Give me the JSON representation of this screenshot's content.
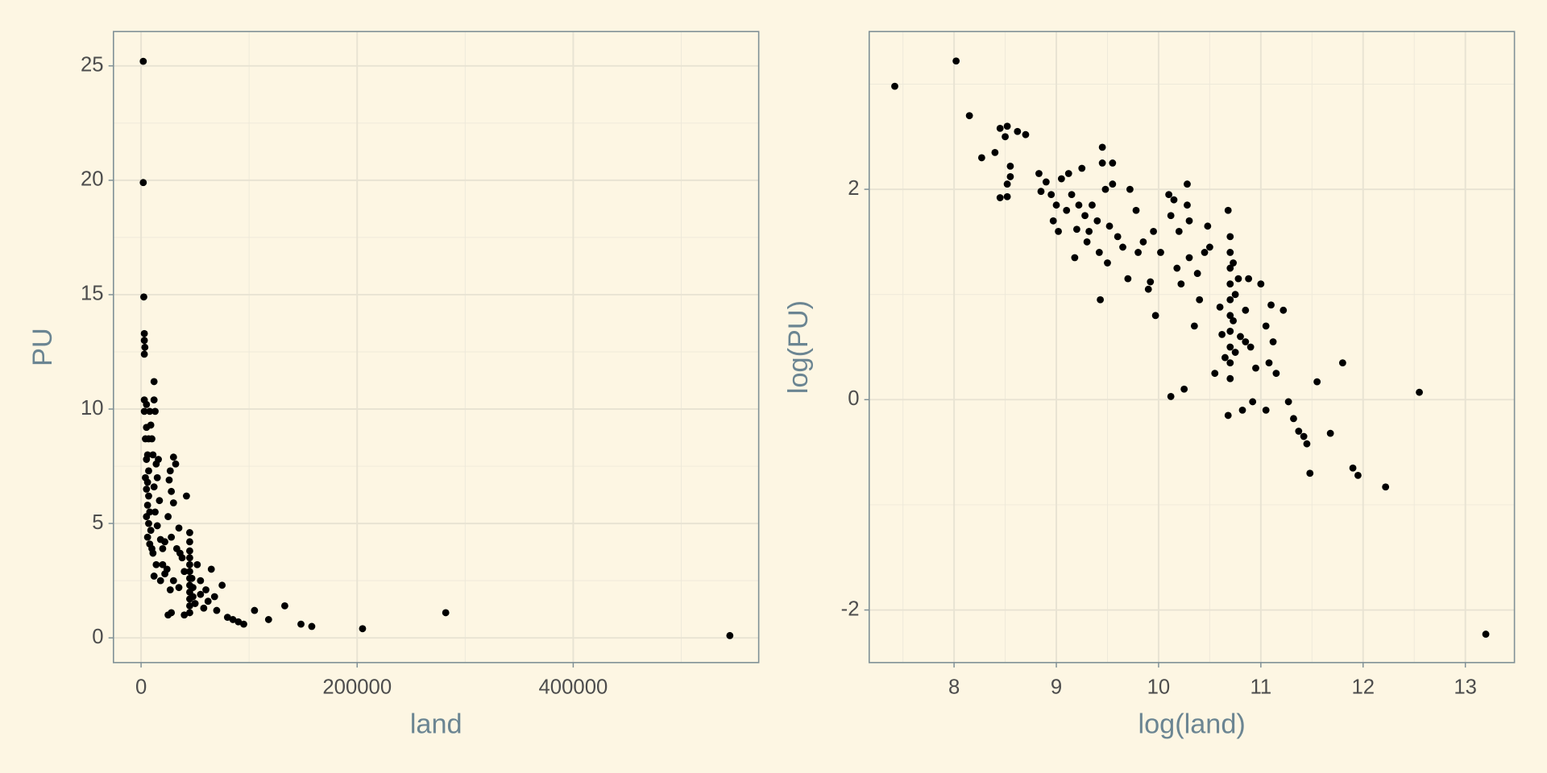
{
  "chart_data": [
    {
      "type": "scatter",
      "xlabel": "land",
      "ylabel": "PU",
      "xlim": [
        -25570,
        571700
      ],
      "ylim": [
        -1.08,
        26.5
      ],
      "xticks": [
        0,
        200000,
        400000
      ],
      "yticks": [
        0,
        5,
        10,
        15,
        20,
        25
      ],
      "grid": true,
      "minor_grid": true,
      "color": "#000000",
      "x": [
        2000,
        2000,
        2500,
        3000,
        3000,
        3500,
        3000,
        3000,
        5000,
        3000,
        8000,
        9000,
        5000,
        7000,
        4000,
        10000,
        6000,
        5000,
        7000,
        4000,
        6000,
        5000,
        7000,
        6000,
        8000,
        5000,
        7000,
        9000,
        6000,
        8000,
        10000,
        12000,
        12000,
        13000,
        11000,
        14000,
        16000,
        15000,
        12000,
        17000,
        13000,
        15000,
        18000,
        11000,
        14000,
        12000,
        20000,
        22000,
        25000,
        28000,
        30000,
        27000,
        32000,
        26000,
        30000,
        35000,
        28000,
        33000,
        24000,
        30000,
        27000,
        38000,
        40000,
        42000,
        45000,
        45000,
        45000,
        45000,
        45000,
        45000,
        45000,
        45000,
        45000,
        45000,
        45000,
        45000,
        47000,
        48000,
        48000,
        50000,
        52000,
        55000,
        55000,
        58000,
        60000,
        62000,
        65000,
        68000,
        70000,
        75000,
        80000,
        85000,
        90000,
        95000,
        28000,
        25000,
        40000,
        105000,
        118000,
        133000,
        148000,
        158000,
        205000,
        282000,
        545000,
        18000,
        20000,
        22000,
        36000,
        35000
      ],
      "values": [
        25.2,
        19.9,
        14.9,
        13.3,
        13.0,
        12.7,
        12.4,
        10.4,
        10.2,
        9.9,
        9.9,
        9.3,
        9.2,
        8.7,
        8.7,
        8.7,
        8.0,
        7.8,
        7.3,
        7.0,
        6.8,
        6.5,
        6.2,
        5.8,
        5.5,
        5.3,
        5.0,
        4.7,
        4.4,
        4.1,
        3.9,
        11.2,
        10.4,
        9.9,
        8.0,
        7.6,
        7.8,
        7.0,
        6.6,
        6.0,
        5.5,
        4.9,
        4.3,
        3.7,
        3.2,
        2.7,
        3.9,
        4.2,
        5.3,
        6.4,
        7.9,
        7.3,
        7.6,
        6.9,
        5.9,
        4.8,
        4.4,
        3.9,
        3.0,
        2.5,
        2.1,
        3.5,
        2.9,
        6.2,
        4.6,
        4.2,
        3.8,
        3.5,
        3.2,
        2.9,
        2.6,
        2.3,
        2.0,
        1.7,
        1.4,
        1.1,
        2.6,
        2.2,
        1.8,
        1.5,
        3.2,
        2.5,
        1.9,
        1.3,
        2.1,
        1.6,
        3.0,
        1.8,
        1.2,
        2.3,
        0.9,
        0.8,
        0.7,
        0.6,
        1.1,
        1.0,
        1.0,
        1.2,
        0.8,
        1.4,
        0.6,
        0.5,
        0.4,
        1.1,
        0.1,
        2.5,
        3.2,
        2.8,
        3.7,
        2.2
      ]
    },
    {
      "type": "scatter",
      "xlabel": "log(land)",
      "ylabel": "log(PU)",
      "xlim": [
        7.17,
        13.48
      ],
      "ylim": [
        -2.5,
        3.5
      ],
      "xticks": [
        8,
        9,
        10,
        11,
        12,
        13
      ],
      "yticks": [
        -2,
        0,
        2
      ],
      "grid": true,
      "minor_grid": true,
      "color": "#000000",
      "x": [
        7.42,
        8.02,
        8.15,
        8.27,
        8.4,
        8.45,
        8.52,
        8.5,
        8.62,
        8.7,
        8.45,
        8.52,
        8.52,
        8.55,
        8.55,
        8.83,
        8.85,
        8.9,
        8.95,
        8.97,
        9.0,
        9.02,
        9.05,
        9.1,
        9.12,
        9.15,
        9.18,
        9.2,
        9.22,
        9.25,
        9.28,
        9.3,
        9.32,
        9.35,
        9.4,
        9.42,
        9.43,
        9.45,
        9.45,
        9.48,
        9.5,
        9.52,
        9.55,
        9.55,
        9.6,
        9.65,
        9.7,
        9.72,
        9.78,
        9.8,
        9.85,
        9.9,
        9.92,
        9.95,
        9.97,
        10.02,
        10.1,
        10.12,
        10.15,
        10.12,
        10.18,
        10.2,
        10.22,
        10.25,
        10.28,
        10.28,
        10.3,
        10.3,
        10.35,
        10.38,
        10.4,
        10.45,
        10.48,
        10.5,
        10.55,
        10.6,
        10.62,
        10.65,
        10.68,
        10.68,
        10.7,
        10.7,
        10.7,
        10.7,
        10.7,
        10.7,
        10.7,
        10.7,
        10.7,
        10.7,
        10.73,
        10.73,
        10.75,
        10.75,
        10.78,
        10.8,
        10.82,
        10.85,
        10.85,
        10.88,
        10.9,
        10.92,
        10.95,
        11.0,
        11.05,
        11.05,
        11.08,
        11.1,
        11.12,
        11.15,
        11.22,
        11.27,
        11.32,
        11.37,
        11.42,
        11.45,
        11.48,
        11.55,
        11.68,
        11.8,
        11.9,
        11.95,
        12.22,
        12.55,
        13.2
      ],
      "values": [
        2.98,
        3.22,
        2.7,
        2.3,
        2.35,
        2.58,
        2.6,
        2.5,
        2.55,
        2.52,
        1.92,
        1.93,
        2.05,
        2.12,
        2.22,
        2.15,
        1.98,
        2.07,
        1.95,
        1.7,
        1.85,
        1.6,
        2.1,
        1.8,
        2.15,
        1.95,
        1.35,
        1.62,
        1.85,
        2.2,
        1.75,
        1.5,
        1.6,
        1.85,
        1.7,
        1.4,
        0.95,
        2.4,
        2.25,
        2.0,
        1.3,
        1.65,
        2.25,
        2.05,
        1.55,
        1.45,
        1.15,
        2.0,
        1.8,
        1.4,
        1.5,
        1.05,
        1.12,
        1.6,
        0.8,
        1.4,
        1.95,
        1.75,
        1.9,
        0.03,
        1.25,
        1.6,
        1.1,
        0.1,
        2.05,
        1.85,
        1.7,
        1.35,
        0.7,
        1.2,
        0.95,
        1.4,
        1.65,
        1.45,
        0.25,
        0.88,
        0.62,
        0.4,
        1.8,
        -0.15,
        1.55,
        1.4,
        1.25,
        1.1,
        0.95,
        0.8,
        0.65,
        0.5,
        0.35,
        0.2,
        1.3,
        0.75,
        1.0,
        0.45,
        1.15,
        0.6,
        -0.1,
        0.85,
        0.55,
        1.15,
        0.5,
        -0.02,
        0.3,
        1.1,
        0.7,
        -0.1,
        0.35,
        0.9,
        0.55,
        0.25,
        0.85,
        -0.02,
        -0.18,
        -0.3,
        -0.35,
        -0.42,
        -0.7,
        0.17,
        -0.32,
        0.35,
        -0.65,
        -0.72,
        -0.83,
        0.07,
        -2.23
      ]
    }
  ]
}
